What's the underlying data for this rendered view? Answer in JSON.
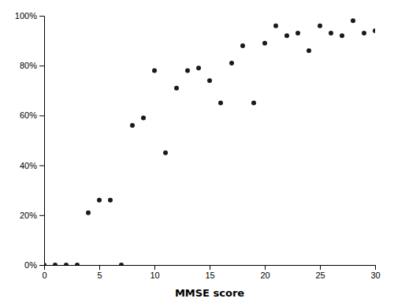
{
  "chart_data": {
    "type": "scatter",
    "xlabel": "MMSE score",
    "x": [
      0,
      1,
      2,
      3,
      7,
      4,
      5,
      6,
      8,
      9,
      10,
      11,
      12,
      13,
      14,
      15,
      16,
      17,
      18,
      19,
      20,
      21,
      22,
      23,
      24,
      25,
      26,
      27,
      28,
      29,
      30
    ],
    "values": [
      0,
      0,
      0,
      0,
      0,
      0.21,
      0.26,
      0.26,
      0.56,
      0.59,
      0.78,
      0.45,
      0.71,
      0.78,
      0.79,
      0.74,
      0.65,
      0.81,
      0.88,
      0.65,
      0.89,
      0.96,
      0.92,
      0.93,
      0.86,
      0.96,
      0.93,
      0.92,
      0.98,
      0.93,
      0.94
    ],
    "color": "#1a1a1a",
    "xlim": [
      0,
      30
    ],
    "ylim": [
      0,
      1.0
    ],
    "xticks": [
      0,
      5,
      10,
      15,
      20,
      25,
      30
    ],
    "yticks": [
      {
        "value": 0,
        "label": "0%"
      },
      {
        "value": 0.2,
        "label": "20%"
      },
      {
        "value": 0.4,
        "label": "40%"
      },
      {
        "value": 0.6,
        "label": "60%"
      },
      {
        "value": 0.8,
        "label": "80%"
      },
      {
        "value": 1.0,
        "label": "100%"
      }
    ],
    "grid": false
  }
}
